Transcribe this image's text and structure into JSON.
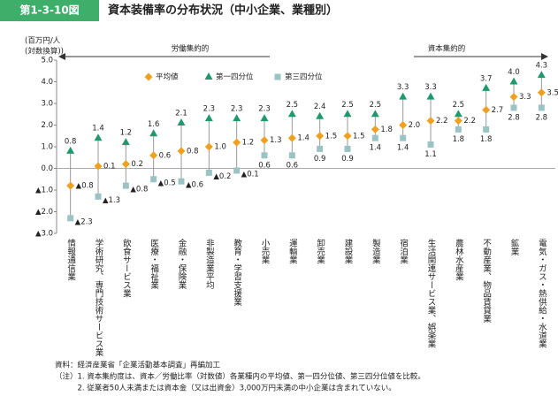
{
  "header": {
    "badge": "第1-3-10図",
    "title": "資本装備率の分布状況（中小企業、業種別）"
  },
  "chart_data": {
    "type": "dotrange",
    "y_label": [
      "(百万円/人",
      "(対数換算))"
    ],
    "annotations": {
      "left": "労働集約的",
      "right": "資本集約的"
    },
    "categories": [
      "情報通信業",
      "学術研究、専門技術サービス業",
      "飲食サービス業",
      "医療・福祉業",
      "金融・保険業",
      "非製造業平均",
      "教育・学習支援業",
      "小売業",
      "運輸業",
      "卸売業",
      "建設業",
      "製造業",
      "宿泊業",
      "生活関連サービス業、娯楽業",
      "農林水産業",
      "不動産業、物品賃貸業",
      "鉱業",
      "電気・ガス・熱供給・水道業"
    ],
    "series": [
      {
        "name": "平均値",
        "color": "#f0a020",
        "marker": "diamond",
        "values": [
          -0.8,
          0.1,
          0.2,
          0.6,
          0.8,
          1.0,
          1.2,
          1.3,
          1.4,
          1.5,
          1.5,
          1.8,
          2.0,
          2.2,
          2.2,
          2.7,
          3.3,
          3.5
        ],
        "value_labels": [
          "▲0.8",
          "0.1",
          "0.2",
          "0.6",
          "0.8",
          "1.0",
          "1.2",
          "1.3",
          "1.4",
          "1.5",
          "1.5",
          "1.8",
          "2.0",
          "2.2",
          "2.2",
          "2.7",
          "3.3",
          "3.5"
        ]
      },
      {
        "name": "第一四分位",
        "color": "#1f9a6c",
        "marker": "triangle",
        "values": [
          0.8,
          1.4,
          1.2,
          1.6,
          2.1,
          2.3,
          2.3,
          2.3,
          2.5,
          2.4,
          2.5,
          2.5,
          3.3,
          3.3,
          2.5,
          3.7,
          4.0,
          4.3
        ],
        "value_labels": [
          "0.8",
          "1.4",
          "1.2",
          "1.6",
          "2.1",
          "2.3",
          "2.3",
          "2.3",
          "2.5",
          "2.4",
          "2.5",
          "2.5",
          "3.3",
          "3.3",
          "2.5",
          "3.7",
          "4.0",
          "4.3"
        ]
      },
      {
        "name": "第三四分位",
        "color": "#9cc3c3",
        "marker": "square",
        "values": [
          -2.3,
          -1.3,
          -0.8,
          -0.5,
          -0.6,
          -0.2,
          -0.1,
          0.6,
          0.6,
          0.9,
          0.9,
          1.4,
          1.4,
          1.1,
          1.8,
          1.8,
          2.8,
          2.8
        ],
        "value_labels": [
          "▲2.3",
          "▲1.3",
          "▲0.8",
          "▲0.5",
          "▲0.6",
          "▲0.2",
          "▲0.1",
          "0.6",
          "0.6",
          "0.9",
          "0.9",
          "1.4",
          "1.4",
          "1.1",
          "1.8",
          "1.8",
          "2.8",
          "2.8"
        ]
      }
    ],
    "ylim": [
      -3,
      5
    ],
    "yticks": [
      {
        "value": -3,
        "label": "▲3.0"
      },
      {
        "value": -2,
        "label": "▲2.0"
      },
      {
        "value": -1,
        "label": "▲1.0"
      },
      {
        "value": 0,
        "label": "0.0"
      },
      {
        "value": 1,
        "label": "1.0"
      },
      {
        "value": 2,
        "label": "2.0"
      },
      {
        "value": 3,
        "label": "3.0"
      },
      {
        "value": 4,
        "label": "4.0"
      },
      {
        "value": 5,
        "label": "5.0"
      }
    ]
  },
  "footer": [
    "資料：経済産業省「企業活動基本調査」再編加工",
    "（注）1. 資本集約度は、資本／労働比率（対数値）各業種内の平均値、第一四分位値、第三四分位値を比較。",
    "　　　2. 従業者50人未満または資本金（又は出資金）3,000万円未満の中小企業は含まれていない。"
  ]
}
